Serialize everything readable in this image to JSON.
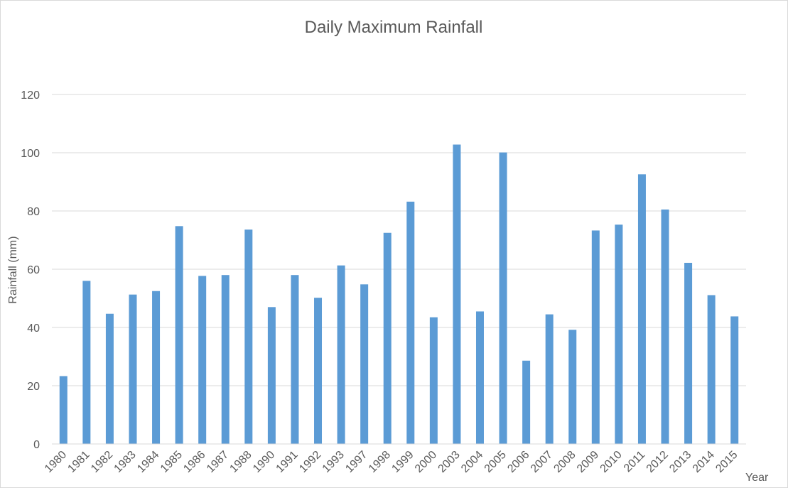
{
  "chart_data": {
    "type": "bar",
    "title": "Daily Maximum Rainfall",
    "xlabel": "Year",
    "ylabel": "Rainfall (mm)",
    "ylim": [
      0,
      120
    ],
    "yticks": [
      0,
      20,
      40,
      60,
      80,
      100,
      120
    ],
    "grid": true,
    "legend": "none",
    "bar_color": "#5b9bd5",
    "categories": [
      "1980",
      "1981",
      "1982",
      "1983",
      "1984",
      "1985",
      "1986",
      "1987",
      "1988",
      "1990",
      "1991",
      "1992",
      "1993",
      "1997",
      "1998",
      "1999",
      "2000",
      "2003",
      "2004",
      "2005",
      "2006",
      "2007",
      "2008",
      "2009",
      "2010",
      "2011",
      "2012",
      "2013",
      "2014",
      "2015"
    ],
    "values": [
      23.3,
      56.0,
      44.7,
      51.3,
      52.5,
      74.8,
      57.7,
      58.0,
      73.6,
      47.0,
      58.0,
      50.2,
      61.3,
      54.8,
      72.5,
      83.2,
      43.5,
      102.8,
      45.5,
      100.1,
      28.6,
      44.5,
      39.2,
      73.3,
      75.3,
      92.6,
      80.5,
      62.2,
      51.1,
      43.8
    ]
  }
}
